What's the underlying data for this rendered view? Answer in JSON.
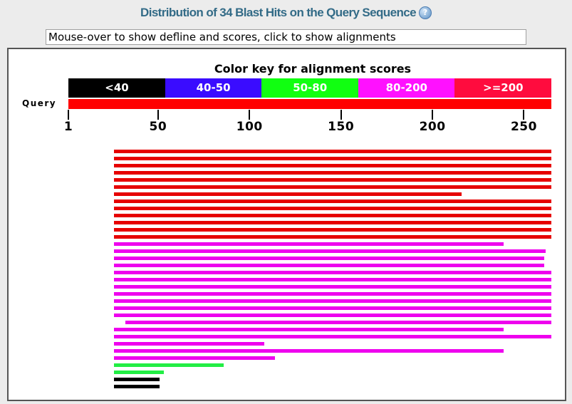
{
  "header": {
    "title": "Distribution of 34 Blast Hits on the Query Sequence",
    "help_icon": "help-question-icon"
  },
  "info_box": {
    "text": "Mouse-over to show defline and scores, click to show alignments"
  },
  "color_key": {
    "title": "Color key for alignment scores",
    "segments": [
      {
        "label": "<40",
        "color": "#000000"
      },
      {
        "label": "40-50",
        "color": "#3a0cff"
      },
      {
        "label": "50-80",
        "color": "#11ff11"
      },
      {
        "label": "80-200",
        "color": "#ff11ff"
      },
      {
        "label": ">=200",
        "color": "#ff0c3e"
      }
    ]
  },
  "query": {
    "label": "Query",
    "color": "#ff0000",
    "axis_min": 1,
    "axis_max": 265,
    "ticks": [
      {
        "value": 1,
        "label": "1"
      },
      {
        "value": 50,
        "label": "50"
      },
      {
        "value": 100,
        "label": "100"
      },
      {
        "value": 150,
        "label": "150"
      },
      {
        "value": 200,
        "label": "200"
      },
      {
        "value": 250,
        "label": "250"
      }
    ]
  },
  "hits": [
    {
      "start": 26,
      "end": 265,
      "score_class": ">=200"
    },
    {
      "start": 26,
      "end": 265,
      "score_class": ">=200"
    },
    {
      "start": 26,
      "end": 265,
      "score_class": ">=200"
    },
    {
      "start": 26,
      "end": 265,
      "score_class": ">=200"
    },
    {
      "start": 26,
      "end": 265,
      "score_class": ">=200"
    },
    {
      "start": 26,
      "end": 265,
      "score_class": ">=200"
    },
    {
      "start": 26,
      "end": 216,
      "score_class": ">=200"
    },
    {
      "start": 26,
      "end": 265,
      "score_class": ">=200"
    },
    {
      "start": 26,
      "end": 265,
      "score_class": ">=200"
    },
    {
      "start": 26,
      "end": 265,
      "score_class": ">=200"
    },
    {
      "start": 26,
      "end": 265,
      "score_class": ">=200"
    },
    {
      "start": 26,
      "end": 265,
      "score_class": ">=200"
    },
    {
      "start": 26,
      "end": 265,
      "score_class": ">=200"
    },
    {
      "start": 26,
      "end": 239,
      "score_class": "80-200"
    },
    {
      "start": 26,
      "end": 262,
      "score_class": "80-200"
    },
    {
      "start": 26,
      "end": 261,
      "score_class": "80-200"
    },
    {
      "start": 26,
      "end": 261,
      "score_class": "80-200"
    },
    {
      "start": 26,
      "end": 265,
      "score_class": "80-200"
    },
    {
      "start": 26,
      "end": 265,
      "score_class": "80-200"
    },
    {
      "start": 26,
      "end": 265,
      "score_class": "80-200"
    },
    {
      "start": 26,
      "end": 265,
      "score_class": "80-200"
    },
    {
      "start": 26,
      "end": 265,
      "score_class": "80-200"
    },
    {
      "start": 26,
      "end": 265,
      "score_class": "80-200"
    },
    {
      "start": 26,
      "end": 265,
      "score_class": "80-200"
    },
    {
      "start": 32,
      "end": 265,
      "score_class": "80-200"
    },
    {
      "start": 26,
      "end": 239,
      "score_class": "80-200"
    },
    {
      "start": 26,
      "end": 265,
      "score_class": "80-200"
    },
    {
      "start": 26,
      "end": 108,
      "score_class": "80-200"
    },
    {
      "start": 26,
      "end": 239,
      "score_class": "80-200"
    },
    {
      "start": 26,
      "end": 114,
      "score_class": "80-200"
    },
    {
      "start": 26,
      "end": 86,
      "score_class": "50-80"
    },
    {
      "start": 26,
      "end": 53,
      "score_class": "50-80"
    },
    {
      "start": 26,
      "end": 51,
      "score_class": "<40"
    },
    {
      "start": 26,
      "end": 51,
      "score_class": "<40"
    }
  ]
}
